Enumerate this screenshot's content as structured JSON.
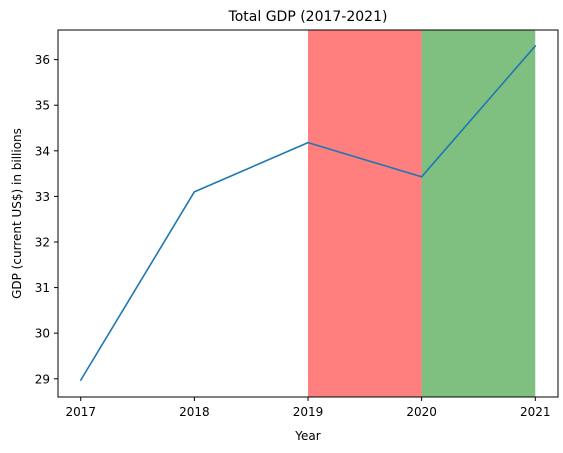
{
  "chart_data": {
    "type": "line",
    "title": "Total GDP (2017-2021)",
    "xlabel": "Year",
    "ylabel": "GDP (current US$) in billions",
    "x": [
      2017,
      2018,
      2019,
      2020,
      2021
    ],
    "xlim": [
      2016.8,
      2021.2
    ],
    "ylim": [
      28.6,
      36.65
    ],
    "xticks": [
      2017,
      2018,
      2019,
      2020,
      2021
    ],
    "yticks": [
      29,
      30,
      31,
      32,
      33,
      34,
      35,
      36
    ],
    "grid": false,
    "series": [
      {
        "name": "",
        "color": "#1f77b4",
        "values": [
          28.97,
          33.1,
          34.18,
          33.43,
          36.3
        ]
      }
    ],
    "shaded_spans": [
      {
        "x0": 2019,
        "x1": 2020,
        "color": "#ff0000",
        "opacity": 0.5
      },
      {
        "x0": 2020,
        "x1": 2021,
        "color": "#008000",
        "opacity": 0.5
      }
    ]
  }
}
